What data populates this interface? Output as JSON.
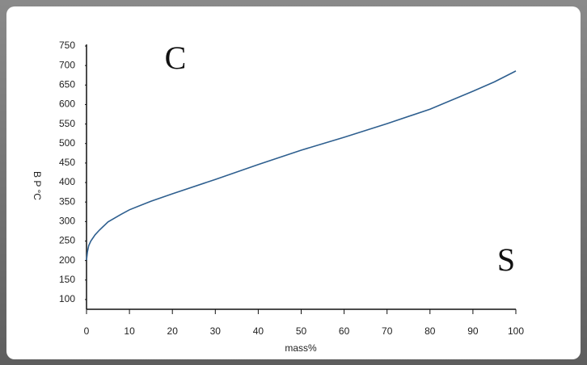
{
  "chart_data": {
    "type": "line",
    "annotations": [
      "C",
      "S"
    ],
    "x_label": "mass%",
    "y_label": "B P °C",
    "x": [
      0,
      0.2,
      0.5,
      1,
      2,
      3,
      5,
      8,
      10,
      15,
      20,
      30,
      40,
      50,
      60,
      70,
      80,
      90,
      95,
      100
    ],
    "series": [
      {
        "name": "B P",
        "color": "#2e5f8f",
        "values": [
          201,
          222,
          238,
          250,
          266,
          278,
          299,
          318,
          330,
          352,
          371,
          408,
          446,
          483,
          516,
          551,
          588,
          634,
          658,
          686
        ]
      }
    ],
    "xlim": [
      0,
      100
    ],
    "xticks": [
      0,
      10,
      20,
      30,
      40,
      50,
      60,
      70,
      80,
      90,
      100
    ],
    "ylim": [
      75,
      750
    ],
    "yticks": [
      100,
      150,
      200,
      250,
      300,
      350,
      400,
      450,
      500,
      550,
      600,
      650,
      700,
      750
    ]
  }
}
